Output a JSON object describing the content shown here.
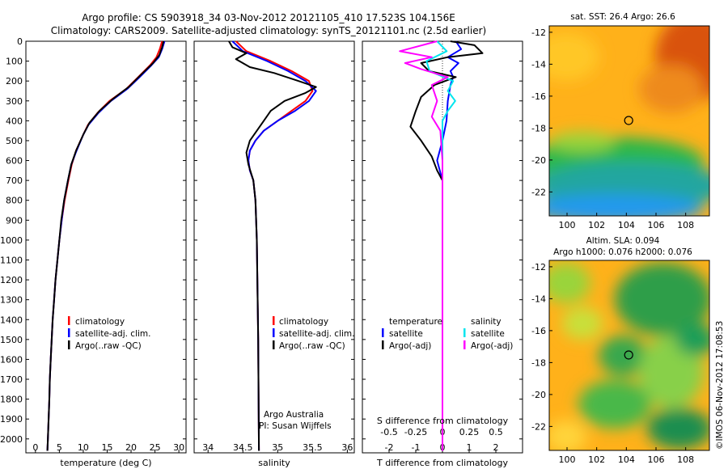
{
  "header": {
    "title_line1": "Argo profile: CS 5903918_34 03-Nov-2012 20121105_410 17.523S 104.156E",
    "title_line2": "Climatology: CARS2009. Satellite-adjusted climatology: synTS_20121101.nc (2.5d earlier)"
  },
  "colors": {
    "climatology": "#ff0000",
    "satellite_adj": "#0000ff",
    "argo": "#000000",
    "sal_satellite": "#00e5ee",
    "sal_argo": "#ff00ff"
  },
  "depth_axis": {
    "ticks": [
      0,
      100,
      200,
      300,
      400,
      500,
      600,
      700,
      800,
      900,
      1000,
      1100,
      1200,
      1300,
      1400,
      1500,
      1600,
      1700,
      1800,
      1900,
      2000
    ],
    "range": [
      0,
      2070
    ]
  },
  "panels": {
    "temperature": {
      "xlabel": "temperature (deg C)",
      "xticks": [
        0,
        5,
        10,
        15,
        20,
        25,
        30
      ],
      "legend": [
        "climatology",
        "satellite-adj. clim.",
        "Argo(..raw -QC)"
      ]
    },
    "salinity": {
      "xlabel": "salinity",
      "xticks": [
        "34",
        "34.5",
        "35",
        "35.5",
        "36"
      ],
      "legend": [
        "climatology",
        "satellite-adj. clim.",
        "Argo(..raw -QC)"
      ],
      "credit_line1": "Argo Australia",
      "credit_line2": "PI: Susan Wijffels"
    },
    "difference": {
      "top_label": "S difference from climatology",
      "s_ticks": [
        "-0.5",
        "-0.25",
        "0",
        "0.25",
        "0.5"
      ],
      "t_ticks": [
        "-2",
        "-1",
        "0",
        "1",
        "2"
      ],
      "xlabel": "T difference from climatology",
      "legend_temp_title": "temperature",
      "legend_temp_items": [
        "satellite",
        "Argo(-adj)"
      ],
      "legend_sal_title": "salinity",
      "legend_sal_items": [
        "satellite",
        "Argo(-adj)"
      ]
    }
  },
  "maps": {
    "sst_title": "sat. SST: 26.4  Argo: 26.6",
    "sla_title_line1": "Altim. SLA: 0.094",
    "sla_title_line2": "Argo h1000: 0.076 h2000: 0.076",
    "yticks": [
      "-12",
      "-14",
      "-16",
      "-18",
      "-20",
      "-22"
    ],
    "xticks": [
      "100",
      "102",
      "104",
      "106",
      "108"
    ],
    "marker_lon": 104.156,
    "marker_lat": -17.523
  },
  "footer": {
    "stamp": "©IMOS 06-Nov-2012 17:08:53"
  },
  "chart_data": [
    {
      "type": "line",
      "name": "temperature",
      "y_axis": "depth",
      "xlim": [
        -2,
        31.5
      ],
      "ylim": [
        2070,
        0
      ],
      "series": [
        {
          "name": "climatology",
          "points": [
            [
              26.5,
              0
            ],
            [
              26,
              40
            ],
            [
              25.3,
              80
            ],
            [
              24,
              120
            ],
            [
              21.5,
              180
            ],
            [
              19,
              240
            ],
            [
              15.5,
              300
            ],
            [
              13,
              360
            ],
            [
              11,
              420
            ],
            [
              10,
              470
            ],
            [
              8.5,
              550
            ],
            [
              7.6,
              620
            ],
            [
              6.9,
              700
            ],
            [
              6.1,
              800
            ],
            [
              5.5,
              900
            ],
            [
              5,
              1000
            ],
            [
              4.6,
              1100
            ],
            [
              4.2,
              1200
            ],
            [
              3.9,
              1300
            ],
            [
              3.6,
              1400
            ],
            [
              3.4,
              1500
            ],
            [
              3.2,
              1600
            ],
            [
              3,
              1700
            ],
            [
              2.9,
              1800
            ],
            [
              2.75,
              1900
            ],
            [
              2.6,
              2000
            ],
            [
              2.5,
              2060
            ]
          ]
        },
        {
          "name": "satellite-adj. clim.",
          "points": [
            [
              27,
              0
            ],
            [
              26.5,
              40
            ],
            [
              25.8,
              80
            ],
            [
              24.3,
              120
            ],
            [
              21.8,
              180
            ],
            [
              19.2,
              240
            ],
            [
              15.8,
              300
            ],
            [
              13.2,
              360
            ],
            [
              11.1,
              420
            ],
            [
              10,
              470
            ],
            [
              8.6,
              550
            ],
            [
              7.5,
              620
            ],
            [
              6.8,
              700
            ],
            [
              6,
              800
            ],
            [
              5.5,
              900
            ],
            [
              5,
              1000
            ],
            [
              4.6,
              1100
            ],
            [
              4.2,
              1200
            ],
            [
              3.9,
              1300
            ],
            [
              3.6,
              1400
            ],
            [
              3.4,
              1500
            ],
            [
              3.2,
              1600
            ],
            [
              3,
              1700
            ],
            [
              2.9,
              1800
            ],
            [
              2.75,
              1900
            ],
            [
              2.6,
              2000
            ],
            [
              2.5,
              2060
            ]
          ]
        },
        {
          "name": "Argo(..raw -QC)",
          "points": [
            [
              26.8,
              0
            ],
            [
              26.5,
              30
            ],
            [
              25.9,
              70
            ],
            [
              24.6,
              110
            ],
            [
              22,
              170
            ],
            [
              19.5,
              230
            ],
            [
              16.2,
              290
            ],
            [
              13.4,
              350
            ],
            [
              11.3,
              410
            ],
            [
              10,
              470
            ],
            [
              8.5,
              550
            ],
            [
              7.5,
              620
            ],
            [
              6.8,
              700
            ],
            [
              6,
              800
            ],
            [
              5.4,
              900
            ],
            [
              5,
              1000
            ],
            [
              4.6,
              1100
            ],
            [
              4.2,
              1200
            ],
            [
              3.9,
              1300
            ],
            [
              3.6,
              1400
            ],
            [
              3.4,
              1500
            ],
            [
              3.2,
              1600
            ],
            [
              3,
              1700
            ],
            [
              2.9,
              1800
            ],
            [
              2.75,
              1900
            ],
            [
              2.6,
              2000
            ],
            [
              2.5,
              2060
            ]
          ]
        }
      ]
    },
    {
      "type": "line",
      "name": "salinity",
      "y_axis": "depth",
      "xlim": [
        33.8,
        36.1
      ],
      "ylim": [
        2070,
        0
      ],
      "series": [
        {
          "name": "climatology",
          "points": [
            [
              34.4,
              0
            ],
            [
              34.55,
              50
            ],
            [
              34.9,
              100
            ],
            [
              35.2,
              150
            ],
            [
              35.45,
              200
            ],
            [
              35.5,
              250
            ],
            [
              35.4,
              300
            ],
            [
              35.2,
              350
            ],
            [
              35,
              400
            ],
            [
              34.8,
              450
            ],
            [
              34.68,
              500
            ],
            [
              34.6,
              550
            ],
            [
              34.58,
              600
            ],
            [
              34.6,
              650
            ],
            [
              34.65,
              700
            ],
            [
              34.68,
              800
            ],
            [
              34.7,
              1000
            ],
            [
              34.72,
              1500
            ],
            [
              34.73,
              2060
            ]
          ]
        },
        {
          "name": "satellite-adj. clim.",
          "points": [
            [
              34.35,
              0
            ],
            [
              34.5,
              50
            ],
            [
              34.85,
              100
            ],
            [
              35.15,
              150
            ],
            [
              35.4,
              200
            ],
            [
              35.55,
              250
            ],
            [
              35.45,
              300
            ],
            [
              35.25,
              350
            ],
            [
              35,
              400
            ],
            [
              34.8,
              450
            ],
            [
              34.68,
              500
            ],
            [
              34.6,
              550
            ],
            [
              34.58,
              600
            ],
            [
              34.6,
              650
            ],
            [
              34.65,
              700
            ],
            [
              34.68,
              800
            ],
            [
              34.7,
              1000
            ],
            [
              34.72,
              1500
            ],
            [
              34.73,
              2060
            ]
          ]
        },
        {
          "name": "Argo(..raw -QC)",
          "points": [
            [
              34.3,
              0
            ],
            [
              34.35,
              30
            ],
            [
              34.55,
              60
            ],
            [
              34.4,
              90
            ],
            [
              34.6,
              130
            ],
            [
              34.95,
              160
            ],
            [
              35.3,
              200
            ],
            [
              35.55,
              230
            ],
            [
              35.4,
              260
            ],
            [
              35.1,
              300
            ],
            [
              34.9,
              350
            ],
            [
              34.8,
              400
            ],
            [
              34.7,
              450
            ],
            [
              34.6,
              500
            ],
            [
              34.55,
              560
            ],
            [
              34.58,
              620
            ],
            [
              34.65,
              700
            ],
            [
              34.68,
              800
            ],
            [
              34.7,
              1000
            ],
            [
              34.72,
              1500
            ],
            [
              34.73,
              2060
            ]
          ]
        }
      ]
    },
    {
      "type": "line",
      "name": "difference",
      "y_axis": "depth",
      "xlim_T": [
        -3,
        3
      ],
      "xlim_S": [
        -0.75,
        0.75
      ],
      "ylim": [
        2070,
        0
      ],
      "series": [
        {
          "name": "temperature satellite",
          "quantity": "T",
          "points": [
            [
              0.5,
              0
            ],
            [
              0.7,
              40
            ],
            [
              0.2,
              80
            ],
            [
              0.6,
              110
            ],
            [
              0.3,
              150
            ],
            [
              0.4,
              180
            ],
            [
              0.3,
              220
            ],
            [
              0.2,
              300
            ],
            [
              0.15,
              400
            ],
            [
              0,
              500
            ],
            [
              -0.2,
              600
            ],
            [
              0,
              700
            ],
            [
              0,
              800
            ],
            [
              0,
              1000
            ],
            [
              0,
              1500
            ],
            [
              0,
              2060
            ]
          ]
        },
        {
          "name": "temperature Argo(-adj)",
          "quantity": "T",
          "points": [
            [
              0.3,
              0
            ],
            [
              1.2,
              20
            ],
            [
              1.5,
              60
            ],
            [
              0.2,
              80
            ],
            [
              -0.8,
              110
            ],
            [
              -0.5,
              150
            ],
            [
              0.5,
              180
            ],
            [
              -0.3,
              220
            ],
            [
              -0.8,
              280
            ],
            [
              -1,
              350
            ],
            [
              -1.2,
              430
            ],
            [
              -0.8,
              500
            ],
            [
              -0.4,
              580
            ],
            [
              -0.2,
              650
            ],
            [
              0,
              700
            ],
            [
              0,
              800
            ],
            [
              0,
              1000
            ],
            [
              0,
              1500
            ],
            [
              0,
              2060
            ]
          ]
        },
        {
          "name": "salinity satellite",
          "quantity": "S",
          "points": [
            [
              -0.05,
              0
            ],
            [
              0.04,
              50
            ],
            [
              -0.15,
              100
            ],
            [
              -0.12,
              150
            ],
            [
              0.1,
              200
            ],
            [
              0.05,
              250
            ],
            [
              0.12,
              300
            ],
            [
              0.05,
              350
            ],
            [
              0,
              400
            ],
            [
              0,
              500
            ],
            [
              0,
              600
            ],
            [
              0,
              700
            ],
            [
              0,
              800
            ],
            [
              0,
              1000
            ],
            [
              0,
              1500
            ],
            [
              0,
              2060
            ]
          ]
        },
        {
          "name": "salinity Argo(-adj)",
          "quantity": "S",
          "points": [
            [
              -0.05,
              0
            ],
            [
              -0.4,
              50
            ],
            [
              -0.1,
              80
            ],
            [
              -0.35,
              110
            ],
            [
              -0.2,
              140
            ],
            [
              0.05,
              180
            ],
            [
              -0.1,
              220
            ],
            [
              -0.05,
              300
            ],
            [
              -0.1,
              380
            ],
            [
              -0.02,
              450
            ],
            [
              0,
              600
            ],
            [
              0,
              700
            ],
            [
              0,
              800
            ],
            [
              0,
              1000
            ],
            [
              0,
              1500
            ],
            [
              0,
              2060
            ]
          ]
        }
      ]
    }
  ]
}
